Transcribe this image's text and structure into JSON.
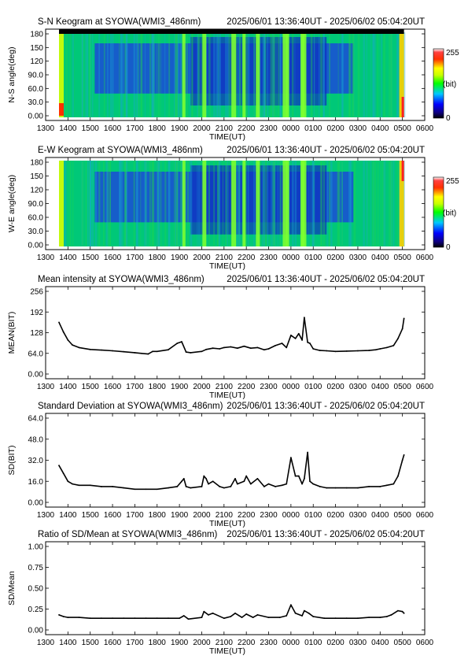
{
  "x_axis": {
    "label": "TIME(UT)",
    "ticks": [
      "1300",
      "1400",
      "1500",
      "1600",
      "1700",
      "1800",
      "1900",
      "2000",
      "2100",
      "2200",
      "2300",
      "0000",
      "0100",
      "0200",
      "0300",
      "0400",
      "0500",
      "0600"
    ]
  },
  "colorbar": {
    "max_label": "255",
    "unit_label": "(bit)",
    "min_label": "0"
  },
  "colors": {
    "line": "#000000",
    "frame": "#000000"
  },
  "chart_data": [
    {
      "type": "heatmap",
      "title": "S-N Keogram at SYOWA(WMI3_486nm)",
      "time_range": "2025/06/01 13:36:40UT - 2025/06/02 05:04:20UT",
      "ylabel": "N-S angle(deg)",
      "xlabel": "TIME(UT)",
      "ylim": [
        0,
        180
      ],
      "ytick_labels": [
        "0.00",
        "30.0",
        "60.0",
        "90.0",
        "120",
        "150",
        "180"
      ],
      "yticks": [
        0,
        30,
        60,
        90,
        120,
        150,
        180
      ],
      "colorscale": "rainbow (0-255 bit)",
      "bright_times_ut": [
        19.2,
        20.1,
        21.4,
        21.9,
        22.5,
        23.7,
        23.85,
        0.5,
        0.55
      ]
    },
    {
      "type": "heatmap",
      "title": "E-W Keogram at SYOWA(WMI3_486nm)",
      "time_range": "2025/06/01 13:36:40UT - 2025/06/02 05:04:20UT",
      "ylabel": "W-E angle(deg)",
      "xlabel": "TIME(UT)",
      "ylim": [
        0,
        180
      ],
      "ytick_labels": [
        "0.00",
        "30.0",
        "60.0",
        "90.0",
        "120",
        "150",
        "180"
      ],
      "yticks": [
        0,
        30,
        60,
        90,
        120,
        150,
        180
      ],
      "colorscale": "rainbow (0-255 bit)",
      "bright_times_ut": [
        19.2,
        20.1,
        21.4,
        21.9,
        22.5,
        23.7,
        23.85,
        0.5,
        0.55
      ]
    },
    {
      "type": "line",
      "title": "Mean intensity at SYOWA(WMI3_486nm)",
      "time_range": "2025/06/01 13:36:40UT - 2025/06/02 05:04:20UT",
      "xlabel": "TIME(UT)",
      "ylabel": "MEAN(BIT)",
      "ylim": [
        0,
        256
      ],
      "yticks": [
        0,
        64,
        128,
        192,
        256
      ],
      "ytick_labels": [
        "0.00",
        "64.0",
        "128",
        "192",
        "256"
      ],
      "x": [
        13.6,
        13.8,
        14.0,
        14.2,
        14.5,
        15.0,
        15.5,
        16.0,
        16.5,
        17.0,
        17.3,
        17.6,
        17.8,
        18.0,
        18.5,
        18.9,
        19.1,
        19.3,
        19.5,
        20.0,
        20.2,
        20.5,
        20.8,
        21.0,
        21.3,
        21.6,
        21.9,
        22.2,
        22.5,
        22.8,
        23.0,
        23.3,
        23.6,
        23.8,
        24.0,
        24.2,
        24.35,
        24.5,
        24.6,
        24.75,
        24.85,
        25.0,
        25.3,
        25.6,
        26.0,
        26.5,
        27.0,
        27.5,
        27.8,
        28.0,
        28.3,
        28.6,
        28.8,
        29.0,
        29.07
      ],
      "values": [
        160,
        130,
        105,
        90,
        82,
        76,
        74,
        72,
        69,
        66,
        64,
        62,
        70,
        70,
        75,
        95,
        100,
        68,
        66,
        70,
        76,
        80,
        78,
        82,
        84,
        80,
        86,
        80,
        82,
        75,
        78,
        88,
        95,
        82,
        120,
        110,
        125,
        105,
        175,
        98,
        95,
        78,
        73,
        72,
        70,
        71,
        72,
        73,
        75,
        78,
        82,
        88,
        110,
        140,
        172
      ]
    },
    {
      "type": "line",
      "title": "Standard Deviation at SYOWA(WMI3_486nm)",
      "time_range": "2025/06/01 13:36:40UT - 2025/06/02 05:04:20UT",
      "xlabel": "TIME(UT)",
      "ylabel": "SD(BIT)",
      "ylim": [
        0,
        64
      ],
      "yticks": [
        0,
        16,
        32,
        48,
        64
      ],
      "ytick_labels": [
        "0.00",
        "16.0",
        "32.0",
        "48.0",
        "64.0"
      ],
      "x": [
        13.6,
        13.8,
        14.0,
        14.2,
        14.5,
        15.0,
        15.5,
        16.0,
        16.5,
        17.0,
        17.5,
        18.0,
        18.5,
        18.9,
        19.1,
        19.2,
        19.3,
        19.5,
        20.0,
        20.1,
        20.2,
        20.3,
        20.5,
        20.8,
        21.0,
        21.3,
        21.5,
        21.6,
        21.9,
        22.0,
        22.2,
        22.5,
        22.8,
        23.0,
        23.3,
        23.6,
        23.8,
        24.0,
        24.2,
        24.35,
        24.5,
        24.6,
        24.75,
        24.85,
        25.0,
        25.3,
        25.6,
        26.0,
        26.5,
        27.0,
        27.5,
        28.0,
        28.3,
        28.6,
        28.8,
        29.0,
        29.07
      ],
      "values": [
        28,
        22,
        16,
        14,
        13,
        13,
        12,
        12,
        11,
        10,
        10,
        10,
        11,
        12,
        16,
        18,
        12,
        11,
        12,
        20,
        18,
        14,
        16,
        12,
        11,
        12,
        18,
        14,
        16,
        20,
        14,
        18,
        12,
        14,
        12,
        13,
        14,
        34,
        20,
        20,
        14,
        18,
        38,
        16,
        14,
        12,
        11,
        11,
        11,
        11,
        12,
        12,
        13,
        14,
        20,
        32,
        36
      ]
    },
    {
      "type": "line",
      "title": "Ratio of SD/Mean at SYOWA(WMI3_486nm)",
      "time_range": "2025/06/01 13:36:40UT - 2025/06/02 05:04:20UT",
      "xlabel": "TIME(UT)",
      "ylabel": "SD/Mean",
      "ylim": [
        0,
        1
      ],
      "yticks": [
        0,
        0.25,
        0.5,
        0.75,
        1
      ],
      "ytick_labels": [
        "0.00",
        "0.25",
        "0.50",
        "0.75",
        "1.00"
      ],
      "x": [
        13.6,
        13.8,
        14.0,
        14.5,
        15.0,
        15.5,
        16.0,
        16.5,
        17.0,
        17.5,
        18.0,
        18.5,
        19.0,
        19.2,
        19.4,
        20.0,
        20.1,
        20.3,
        20.5,
        21.0,
        21.3,
        21.5,
        21.8,
        22.0,
        22.3,
        22.5,
        23.0,
        23.5,
        23.8,
        24.0,
        24.2,
        24.5,
        24.6,
        24.8,
        25.0,
        25.5,
        26.0,
        26.5,
        27.0,
        27.5,
        28.0,
        28.3,
        28.5,
        28.8,
        29.0,
        29.07
      ],
      "values": [
        0.18,
        0.16,
        0.15,
        0.15,
        0.14,
        0.14,
        0.14,
        0.14,
        0.14,
        0.14,
        0.14,
        0.14,
        0.14,
        0.17,
        0.13,
        0.15,
        0.22,
        0.18,
        0.2,
        0.14,
        0.16,
        0.2,
        0.15,
        0.19,
        0.15,
        0.18,
        0.15,
        0.15,
        0.17,
        0.3,
        0.2,
        0.17,
        0.23,
        0.2,
        0.16,
        0.14,
        0.14,
        0.14,
        0.14,
        0.15,
        0.15,
        0.16,
        0.18,
        0.23,
        0.22,
        0.2
      ]
    }
  ]
}
